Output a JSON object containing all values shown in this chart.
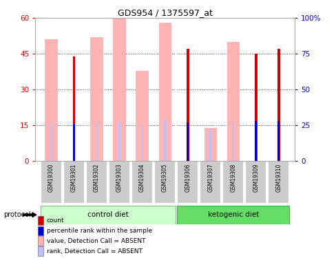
{
  "title": "GDS954 / 1375597_at",
  "samples": [
    "GSM19300",
    "GSM19301",
    "GSM19302",
    "GSM19303",
    "GSM19304",
    "GSM19305",
    "GSM19306",
    "GSM19307",
    "GSM19308",
    "GSM19309",
    "GSM19310"
  ],
  "pink_bars": [
    51,
    0,
    52,
    60,
    38,
    58,
    0,
    14,
    50,
    0,
    0
  ],
  "red_bars": [
    0,
    44,
    0,
    0,
    0,
    0,
    47,
    0,
    0,
    45,
    47
  ],
  "blue_rank_present": [
    0,
    26,
    0,
    0,
    0,
    0,
    27,
    0,
    0,
    28,
    28
  ],
  "lavender_rank_absent": [
    27,
    0,
    27,
    28,
    25,
    29,
    0,
    22,
    28,
    0,
    0
  ],
  "left_ylim": [
    0,
    60
  ],
  "right_ylim": [
    0,
    100
  ],
  "left_yticks": [
    0,
    15,
    30,
    45,
    60
  ],
  "right_yticks": [
    0,
    25,
    50,
    75,
    100
  ],
  "left_yticklabels": [
    "0",
    "15",
    "30",
    "45",
    "60"
  ],
  "right_yticklabels": [
    "0",
    "25",
    "50",
    "75",
    "100%"
  ],
  "left_color": "#cc0000",
  "right_color": "#0000cc",
  "pink_color": "#ffb3b3",
  "lavender_color": "#c0c0ff",
  "red_color": "#cc0000",
  "blue_color": "#0000cc",
  "group_ctrl_label": "control diet",
  "group_ket_label": "ketogenic diet",
  "ctrl_color": "#ccffcc",
  "ket_color": "#66dd66",
  "protocol_label": "protocol",
  "legend_items": [
    {
      "color": "#cc0000",
      "label": "count"
    },
    {
      "color": "#0000cc",
      "label": "percentile rank within the sample"
    },
    {
      "color": "#ffb3b3",
      "label": "value, Detection Call = ABSENT"
    },
    {
      "color": "#c0c0ff",
      "label": "rank, Detection Call = ABSENT"
    }
  ],
  "n_ctrl": 6,
  "n_ket": 5,
  "pink_bar_width": 0.55,
  "red_bar_width": 0.12,
  "rank_bar_width": 0.1
}
